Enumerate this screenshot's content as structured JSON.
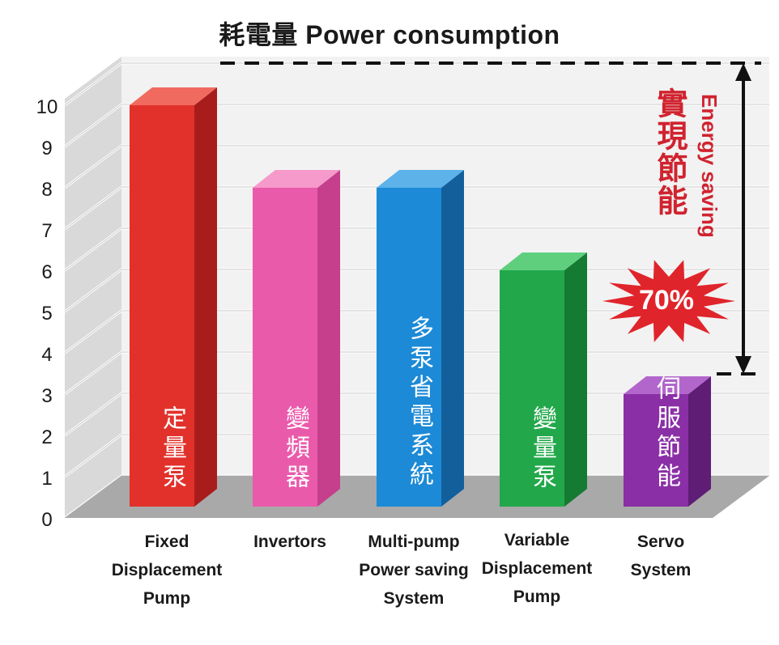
{
  "chart_data": {
    "type": "bar",
    "title": "耗電量 Power consumption",
    "categories": [
      [
        "Fixed",
        "Displacement",
        "Pump"
      ],
      [
        "Invertors"
      ],
      [
        "Multi-pump",
        "Power saving",
        "System"
      ],
      [
        "Variable",
        "Displacement",
        "Pump"
      ],
      [
        "Servo",
        "System"
      ]
    ],
    "bar_labels": [
      "定量泵",
      "變頻器",
      "多泵省電系統",
      "變量泵",
      "伺服節能"
    ],
    "values": [
      10,
      8,
      8,
      6,
      3
    ],
    "colors": [
      "#e2312b",
      "#ea5aab",
      "#1c8ad6",
      "#22a84a",
      "#8a2fa6"
    ],
    "side_colors": [
      "#a81d1c",
      "#c53f8c",
      "#125f9c",
      "#157a32",
      "#5f1d76"
    ],
    "top_colors": [
      "#f06a5f",
      "#f59acb",
      "#5db2ea",
      "#5fcf7e",
      "#b266cc"
    ],
    "yticks": [
      0,
      1,
      2,
      3,
      4,
      5,
      6,
      7,
      8,
      9,
      10
    ],
    "ylim": [
      0,
      10
    ],
    "xlabel": "",
    "ylabel": "",
    "grid": true,
    "annotation": {
      "chinese": "實現節能",
      "english": "Energy saving",
      "percent": "70%",
      "from_value": 10,
      "to_value": 3
    }
  }
}
